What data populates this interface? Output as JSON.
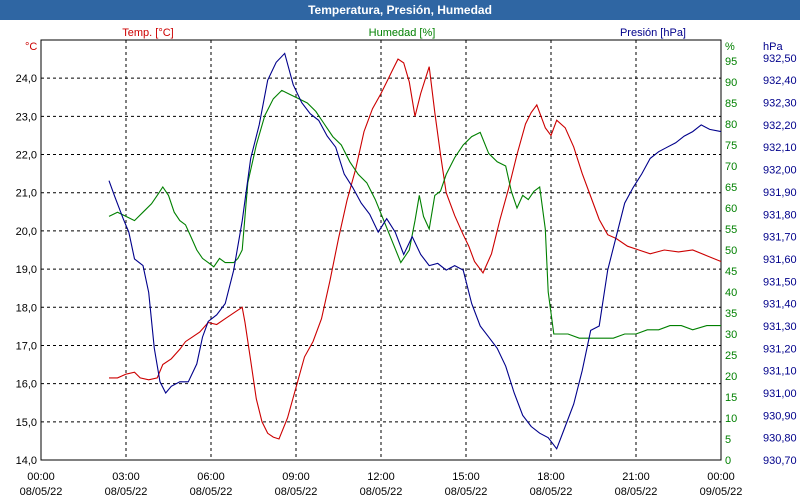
{
  "window": {
    "title": "Temperatura, Presión, Humedad"
  },
  "chart_data": {
    "type": "line",
    "title": "Temperatura, Presión, Humedad",
    "x_labels": [
      [
        "00:00",
        "08/05/22"
      ],
      [
        "03:00",
        "08/05/22"
      ],
      [
        "06:00",
        "08/05/22"
      ],
      [
        "09:00",
        "08/05/22"
      ],
      [
        "12:00",
        "08/05/22"
      ],
      [
        "15:00",
        "08/05/22"
      ],
      [
        "18:00",
        "08/05/22"
      ],
      [
        "21:00",
        "08/05/22"
      ],
      [
        "00:00",
        "09/05/22"
      ]
    ],
    "x_unit": "hours",
    "xlim": [
      0,
      24
    ],
    "grid": true,
    "axes": {
      "temp": {
        "unit_label": "°C",
        "ylim": [
          14,
          25
        ],
        "ticks": [
          "14,0",
          "15,0",
          "16,0",
          "17,0",
          "18,0",
          "19,0",
          "20,0",
          "21,0",
          "22,0",
          "23,0",
          "24,0"
        ],
        "color": "#cc0000"
      },
      "hum": {
        "unit_label": "%",
        "ylim": [
          0,
          100
        ],
        "ticks": [
          "0",
          "5",
          "10",
          "15",
          "20",
          "25",
          "30",
          "35",
          "40",
          "45",
          "50",
          "55",
          "60",
          "65",
          "70",
          "75",
          "80",
          "85",
          "90",
          "95"
        ],
        "color": "#008000"
      },
      "pres": {
        "unit_label": "hPa",
        "ylim": [
          930.7,
          932.58
        ],
        "ticks": [
          "930,70",
          "930,80",
          "930,90",
          "931,00",
          "931,10",
          "931,20",
          "931,30",
          "931,40",
          "931,50",
          "931,60",
          "931,70",
          "931,80",
          "931,90",
          "932,00",
          "932,10",
          "932,20",
          "932,30",
          "932,40",
          "932,50"
        ],
        "color": "#00008b"
      }
    },
    "series": [
      {
        "name": "Temp. [°C]",
        "axis": "temp",
        "color": "#cc0000",
        "points": [
          [
            2.4,
            16.15
          ],
          [
            2.7,
            16.15
          ],
          [
            3,
            16.25
          ],
          [
            3.3,
            16.3
          ],
          [
            3.5,
            16.15
          ],
          [
            3.8,
            16.1
          ],
          [
            4.1,
            16.15
          ],
          [
            4.3,
            16.5
          ],
          [
            4.6,
            16.65
          ],
          [
            4.9,
            16.9
          ],
          [
            5.1,
            17.1
          ],
          [
            5.3,
            17.2
          ],
          [
            5.6,
            17.35
          ],
          [
            5.9,
            17.6
          ],
          [
            6.2,
            17.55
          ],
          [
            6.5,
            17.7
          ],
          [
            6.9,
            17.9
          ],
          [
            7.1,
            18.0
          ],
          [
            7.2,
            17.6
          ],
          [
            7.4,
            16.6
          ],
          [
            7.6,
            15.6
          ],
          [
            7.8,
            15.0
          ],
          [
            8.0,
            14.7
          ],
          [
            8.2,
            14.6
          ],
          [
            8.4,
            14.55
          ],
          [
            8.7,
            15.1
          ],
          [
            9.0,
            15.9
          ],
          [
            9.3,
            16.7
          ],
          [
            9.6,
            17.1
          ],
          [
            9.9,
            17.7
          ],
          [
            10.2,
            18.7
          ],
          [
            10.5,
            19.8
          ],
          [
            10.8,
            20.8
          ],
          [
            11.1,
            21.6
          ],
          [
            11.4,
            22.6
          ],
          [
            11.7,
            23.2
          ],
          [
            12.0,
            23.6
          ],
          [
            12.2,
            23.9
          ],
          [
            12.4,
            24.2
          ],
          [
            12.6,
            24.5
          ],
          [
            12.8,
            24.4
          ],
          [
            13.0,
            23.9
          ],
          [
            13.2,
            23.0
          ],
          [
            13.4,
            23.6
          ],
          [
            13.7,
            24.3
          ],
          [
            13.9,
            23.1
          ],
          [
            14.1,
            22.0
          ],
          [
            14.3,
            21.0
          ],
          [
            14.6,
            20.4
          ],
          [
            14.9,
            19.9
          ],
          [
            15.1,
            19.6
          ],
          [
            15.3,
            19.2
          ],
          [
            15.6,
            18.9
          ],
          [
            15.9,
            19.4
          ],
          [
            16.2,
            20.3
          ],
          [
            16.5,
            21.1
          ],
          [
            16.8,
            22.0
          ],
          [
            17.1,
            22.8
          ],
          [
            17.3,
            23.1
          ],
          [
            17.5,
            23.3
          ],
          [
            17.8,
            22.7
          ],
          [
            18.0,
            22.5
          ],
          [
            18.2,
            22.9
          ],
          [
            18.5,
            22.7
          ],
          [
            18.8,
            22.2
          ],
          [
            19.1,
            21.5
          ],
          [
            19.4,
            20.9
          ],
          [
            19.7,
            20.3
          ],
          [
            20.0,
            19.9
          ],
          [
            20.3,
            19.8
          ],
          [
            20.7,
            19.6
          ],
          [
            21.1,
            19.5
          ],
          [
            21.5,
            19.4
          ],
          [
            22.0,
            19.5
          ],
          [
            22.5,
            19.45
          ],
          [
            23.0,
            19.5
          ],
          [
            23.5,
            19.35
          ],
          [
            24.0,
            19.2
          ]
        ]
      },
      {
        "name": "Humedad [%]",
        "axis": "hum",
        "color": "#008000",
        "points": [
          [
            2.4,
            58
          ],
          [
            2.7,
            59
          ],
          [
            3.0,
            58
          ],
          [
            3.3,
            57
          ],
          [
            3.6,
            59
          ],
          [
            3.9,
            61
          ],
          [
            4.1,
            63
          ],
          [
            4.3,
            65
          ],
          [
            4.5,
            63
          ],
          [
            4.7,
            59
          ],
          [
            4.9,
            57
          ],
          [
            5.1,
            56
          ],
          [
            5.3,
            53
          ],
          [
            5.5,
            50
          ],
          [
            5.7,
            48
          ],
          [
            5.9,
            47
          ],
          [
            6.1,
            46
          ],
          [
            6.3,
            48
          ],
          [
            6.5,
            47
          ],
          [
            6.8,
            47
          ],
          [
            6.95,
            48
          ],
          [
            7.1,
            50
          ],
          [
            7.3,
            66
          ],
          [
            7.6,
            75
          ],
          [
            7.9,
            82
          ],
          [
            8.2,
            86
          ],
          [
            8.5,
            88
          ],
          [
            8.8,
            87
          ],
          [
            9.1,
            86
          ],
          [
            9.4,
            85
          ],
          [
            9.7,
            83
          ],
          [
            10.0,
            80
          ],
          [
            10.3,
            77
          ],
          [
            10.6,
            75
          ],
          [
            10.9,
            71
          ],
          [
            11.2,
            68
          ],
          [
            11.5,
            66
          ],
          [
            11.8,
            62
          ],
          [
            12.1,
            57
          ],
          [
            12.4,
            52
          ],
          [
            12.7,
            47
          ],
          [
            13.0,
            50
          ],
          [
            13.2,
            57
          ],
          [
            13.35,
            63
          ],
          [
            13.5,
            58
          ],
          [
            13.7,
            55
          ],
          [
            13.9,
            63
          ],
          [
            14.1,
            64
          ],
          [
            14.3,
            68
          ],
          [
            14.6,
            72
          ],
          [
            14.9,
            75
          ],
          [
            15.2,
            77
          ],
          [
            15.5,
            78
          ],
          [
            15.8,
            73
          ],
          [
            16.1,
            71
          ],
          [
            16.4,
            70
          ],
          [
            16.6,
            64
          ],
          [
            16.8,
            60
          ],
          [
            17.0,
            63
          ],
          [
            17.2,
            62
          ],
          [
            17.4,
            64
          ],
          [
            17.6,
            65
          ],
          [
            17.8,
            55
          ],
          [
            17.9,
            40
          ],
          [
            18.1,
            30
          ],
          [
            18.3,
            30
          ],
          [
            18.6,
            30
          ],
          [
            19.0,
            29
          ],
          [
            19.4,
            29
          ],
          [
            19.8,
            29
          ],
          [
            20.2,
            29
          ],
          [
            20.6,
            30
          ],
          [
            21.0,
            30
          ],
          [
            21.4,
            31
          ],
          [
            21.8,
            31
          ],
          [
            22.2,
            32
          ],
          [
            22.6,
            32
          ],
          [
            23.0,
            31
          ],
          [
            23.5,
            32
          ],
          [
            24.0,
            32
          ]
        ]
      },
      {
        "name": "Presión [hPa]",
        "axis": "pres",
        "color": "#00008b",
        "points": [
          [
            2.4,
            931.95
          ],
          [
            2.6,
            931.88
          ],
          [
            2.9,
            931.78
          ],
          [
            3.1,
            931.72
          ],
          [
            3.3,
            931.6
          ],
          [
            3.6,
            931.57
          ],
          [
            3.8,
            931.45
          ],
          [
            4.0,
            931.2
          ],
          [
            4.2,
            931.05
          ],
          [
            4.4,
            931.0
          ],
          [
            4.6,
            931.03
          ],
          [
            4.9,
            931.05
          ],
          [
            5.2,
            931.05
          ],
          [
            5.5,
            931.13
          ],
          [
            5.7,
            931.25
          ],
          [
            5.9,
            931.32
          ],
          [
            6.2,
            931.35
          ],
          [
            6.5,
            931.4
          ],
          [
            6.8,
            931.55
          ],
          [
            7.1,
            931.77
          ],
          [
            7.4,
            932.05
          ],
          [
            7.7,
            932.2
          ],
          [
            8.0,
            932.4
          ],
          [
            8.3,
            932.48
          ],
          [
            8.6,
            932.52
          ],
          [
            8.9,
            932.38
          ],
          [
            9.2,
            932.3
          ],
          [
            9.5,
            932.25
          ],
          [
            9.8,
            932.22
          ],
          [
            10.1,
            932.15
          ],
          [
            10.4,
            932.1
          ],
          [
            10.7,
            931.98
          ],
          [
            11.0,
            931.92
          ],
          [
            11.3,
            931.85
          ],
          [
            11.6,
            931.8
          ],
          [
            11.9,
            931.72
          ],
          [
            12.2,
            931.78
          ],
          [
            12.5,
            931.72
          ],
          [
            12.8,
            931.62
          ],
          [
            13.1,
            931.7
          ],
          [
            13.4,
            931.62
          ],
          [
            13.7,
            931.57
          ],
          [
            14.0,
            931.58
          ],
          [
            14.3,
            931.55
          ],
          [
            14.6,
            931.57
          ],
          [
            14.9,
            931.55
          ],
          [
            15.2,
            931.4
          ],
          [
            15.5,
            931.3
          ],
          [
            15.8,
            931.25
          ],
          [
            16.1,
            931.2
          ],
          [
            16.4,
            931.12
          ],
          [
            16.7,
            931.0
          ],
          [
            17.0,
            930.9
          ],
          [
            17.3,
            930.85
          ],
          [
            17.6,
            930.82
          ],
          [
            17.9,
            930.8
          ],
          [
            18.2,
            930.75
          ],
          [
            18.5,
            930.85
          ],
          [
            18.8,
            930.95
          ],
          [
            19.1,
            931.1
          ],
          [
            19.4,
            931.28
          ],
          [
            19.7,
            931.3
          ],
          [
            20.0,
            931.55
          ],
          [
            20.3,
            931.7
          ],
          [
            20.6,
            931.85
          ],
          [
            20.9,
            931.92
          ],
          [
            21.2,
            931.98
          ],
          [
            21.5,
            932.05
          ],
          [
            21.8,
            932.08
          ],
          [
            22.1,
            932.1
          ],
          [
            22.4,
            932.12
          ],
          [
            22.7,
            932.15
          ],
          [
            23.0,
            932.17
          ],
          [
            23.3,
            932.2
          ],
          [
            23.6,
            932.18
          ],
          [
            24.0,
            932.17
          ]
        ]
      }
    ]
  }
}
